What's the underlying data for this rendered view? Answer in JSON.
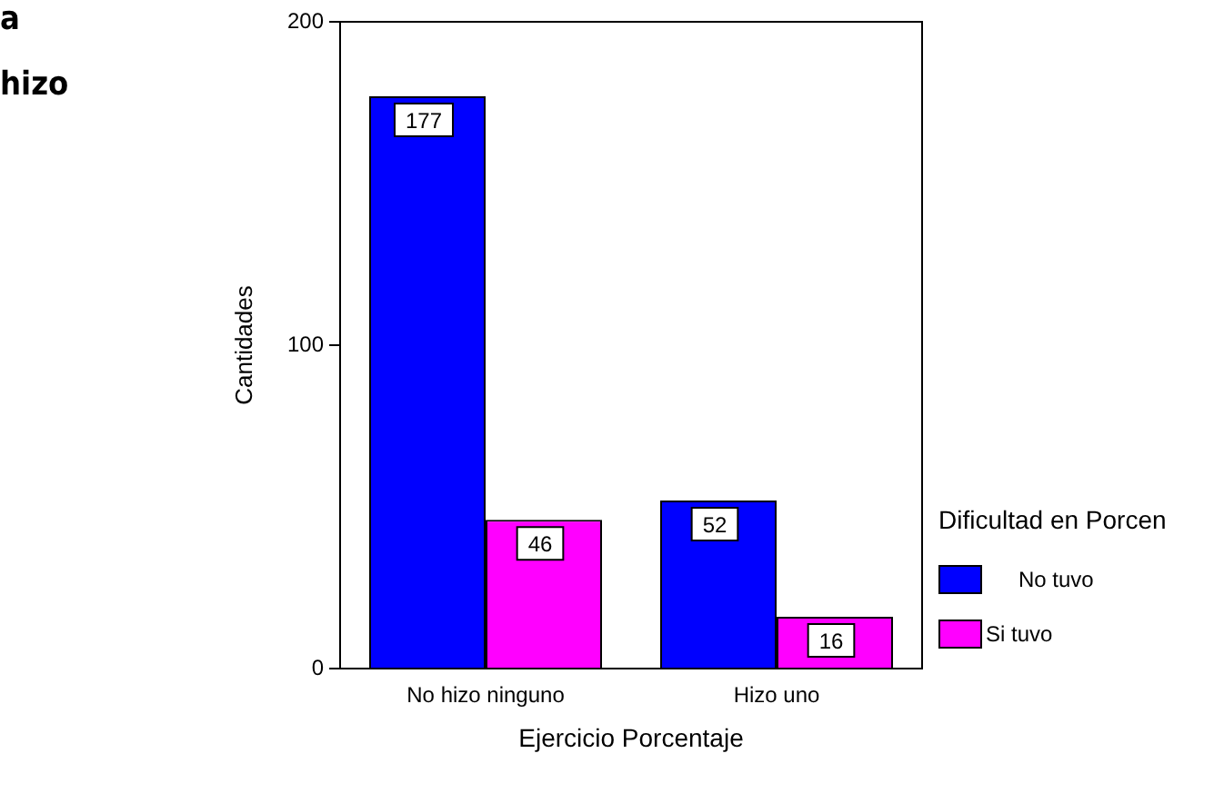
{
  "chart_data": {
    "type": "bar",
    "categories": [
      "No hizo ninguno",
      "Hizo uno"
    ],
    "series": [
      {
        "name": "No tuvo",
        "color": "#0000ff",
        "values": [
          177,
          52
        ]
      },
      {
        "name": "Si tuvo",
        "color": "#ff00ff",
        "values": [
          46,
          16
        ]
      }
    ],
    "xlabel": "Ejercicio Porcentaje",
    "ylabel": "Cantidades",
    "legend_title": "Dificultad en Porcen",
    "legend": "right",
    "ylim": [
      0,
      200
    ],
    "yticks": [
      0,
      100,
      200
    ],
    "grid": false,
    "data_labels": true,
    "annotations": [
      "a",
      "hizo"
    ]
  }
}
